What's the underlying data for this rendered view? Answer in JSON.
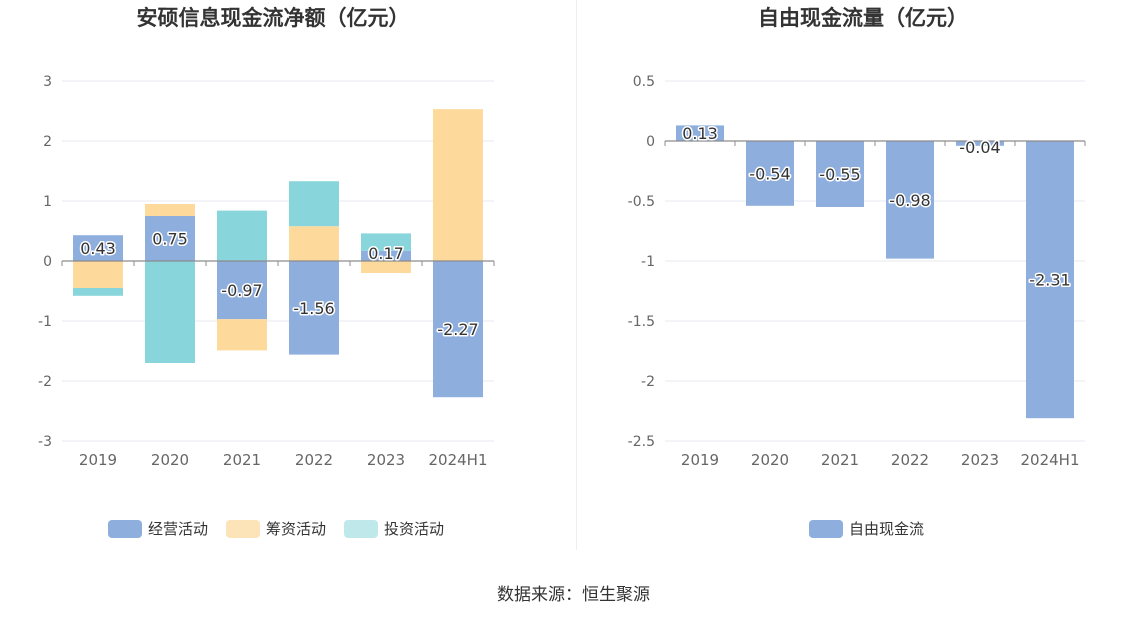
{
  "source_text": "数据来源：恒生聚源",
  "chart_data": [
    {
      "type": "bar",
      "stacked": true,
      "title": "安硕信息现金流净额（亿元）",
      "categories": [
        "2019",
        "2020",
        "2021",
        "2022",
        "2023",
        "2024H1"
      ],
      "series": [
        {
          "name": "经营活动",
          "color": "#8eaedd",
          "values": [
            0.43,
            0.75,
            -0.97,
            -1.56,
            0.17,
            -2.27
          ]
        },
        {
          "name": "筹资活动",
          "color": "#fdd99b",
          "values": [
            -0.45,
            0.2,
            -0.52,
            0.58,
            -0.2,
            2.53
          ]
        },
        {
          "name": "投资活动",
          "color": "#88d6db",
          "values": [
            -0.13,
            -1.7,
            0.84,
            0.75,
            0.29,
            0.0
          ]
        }
      ],
      "data_labels_series": "经营活动",
      "data_labels": [
        "0.43",
        "0.75",
        "-0.97",
        "-1.56",
        "0.17",
        "-2.27"
      ],
      "ylim": [
        -3,
        3
      ],
      "yticks": [
        3,
        2,
        1,
        0,
        -1,
        -2,
        -3
      ],
      "ytick_labels": [
        "3",
        "2",
        "1",
        "0",
        "-1",
        "-2",
        "-3"
      ],
      "legend_items": [
        {
          "name": "经营活动",
          "color": "#8eaedd"
        },
        {
          "name": "筹资活动",
          "color": "#fde3b8"
        },
        {
          "name": "投资活动",
          "color": "#bfe8ea"
        }
      ],
      "legend_position": "bottom",
      "grid": true
    },
    {
      "type": "bar",
      "stacked": false,
      "title": "自由现金流量（亿元）",
      "categories": [
        "2019",
        "2020",
        "2021",
        "2022",
        "2023",
        "2024H1"
      ],
      "series": [
        {
          "name": "自由现金流",
          "color": "#8eaedd",
          "values": [
            0.13,
            -0.54,
            -0.55,
            -0.98,
            -0.04,
            -2.31
          ]
        }
      ],
      "data_labels_series": "自由现金流",
      "data_labels": [
        "0.13",
        "-0.54",
        "-0.55",
        "-0.98",
        "-0.04",
        "-2.31"
      ],
      "ylim": [
        -2.5,
        0.5
      ],
      "yticks": [
        0.5,
        0,
        -0.5,
        -1,
        -1.5,
        -2,
        -2.5
      ],
      "ytick_labels": [
        "0.5",
        "0",
        "-0.5",
        "-1",
        "-1.5",
        "-2",
        "-2.5"
      ],
      "legend_items": [
        {
          "name": "自由现金流",
          "color": "#8eaedd"
        }
      ],
      "legend_position": "bottom",
      "grid": true
    }
  ]
}
